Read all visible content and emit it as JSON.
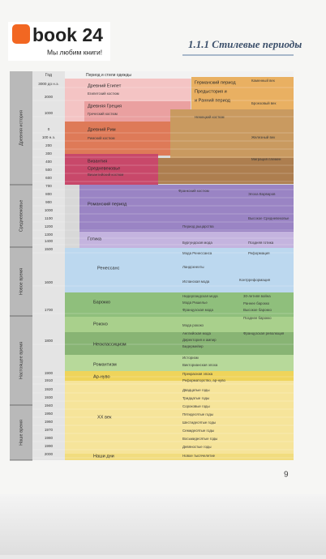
{
  "logo": {
    "name": "book 24",
    "tagline": "Мы любим книги!"
  },
  "header": {
    "title": "1.1.1 Стилевые периоды"
  },
  "diagram": {
    "column_headers": [
      "Год",
      "Период и стили одежды"
    ],
    "years": [
      "3000 до н.э.",
      "2000",
      "1000",
      "0",
      "100 н.э.",
      "200",
      "300",
      "400",
      "500",
      "600",
      "700",
      "800",
      "900",
      "1000",
      "1100",
      "1200",
      "1300",
      "1400",
      "1500",
      "1600",
      "1700",
      "1800",
      "1900",
      "1910",
      "1920",
      "1930",
      "1940",
      "1950",
      "1960",
      "1970",
      "1980",
      "1990",
      "2000"
    ],
    "eras": [
      "Древняя история",
      "Средневековье",
      "Новое время",
      "Настоящее время",
      "Наше время"
    ],
    "labels": [
      "Древний Египет",
      "Египетский костюм",
      "Древняя Греция",
      "Греческий костюм",
      "Древний Рим",
      "Римский костюм",
      "Византия",
      "Средневековье",
      "Византийский костюм",
      "Германский период",
      "Каменный век",
      "Предыстория и",
      "и Ранний период",
      "Бронзовый век",
      "Немецкий костюм",
      "Железный век",
      "Миграция племен",
      "Романский период",
      "Франкский костюм",
      "Эпоха Варваров",
      "Период рыцарства",
      "Высокое Средневековье",
      "Готика",
      "Бургундская мода",
      "Поздняя готика",
      "Мода Ренессанса",
      "Реформация",
      "Ренессанс",
      "Ландскнехты",
      "Испанская мода",
      "Контрреформация",
      "Нидерландская мода",
      "30-летняя война",
      "Мода Ришелье",
      "Раннее барокко",
      "Барокко",
      "Французская мода",
      "Высокое барокко",
      "Позднее барокко",
      "Рококо",
      "Мода рококо",
      "Английская мода",
      "Французская революция",
      "Директория и ампир",
      "Бидермейер",
      "Неоклассицизм",
      "Историзм",
      "Викторианская эпоха",
      "Романтизм",
      "Прекрасная эпоха",
      "Ар-нуво",
      "Реформаторство, ар-нуво",
      "Двадцатые годы",
      "Тридцатые годы",
      "Сороковые годы",
      "XX век",
      "Пятидесятые годы",
      "Шестидесятые годы",
      "Семидесятые годы",
      "Восьмидесятые годы",
      "Девяностые годы",
      "Наши дни",
      "Новое тысячелетие"
    ]
  },
  "page_number": "9"
}
